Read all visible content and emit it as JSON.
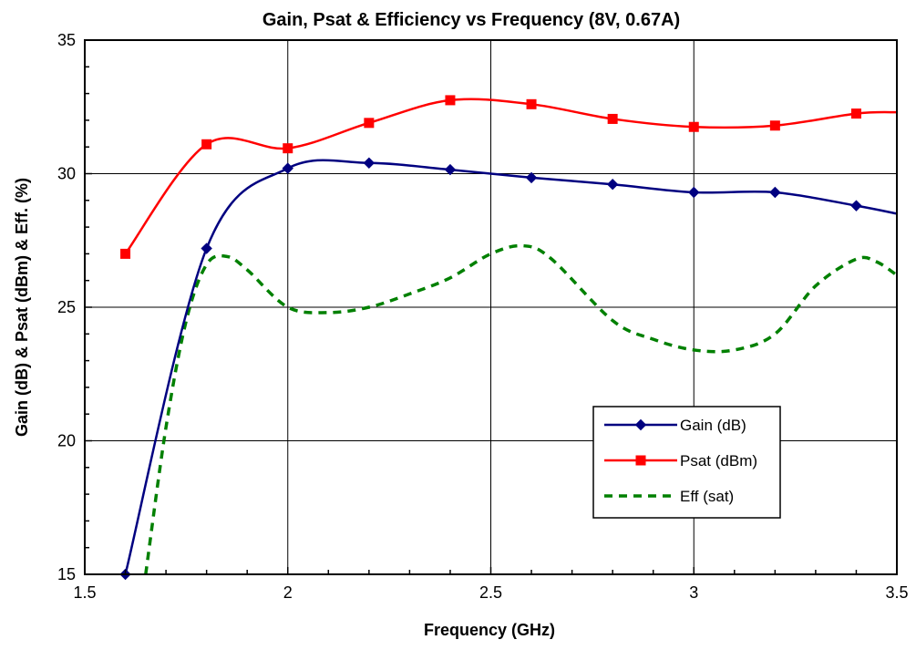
{
  "chart_data": {
    "type": "line",
    "title": "Gain, Psat & Efficiency vs Frequency (8V, 0.67A)",
    "xlabel": "Frequency (GHz)",
    "ylabel": "Gain  (dB) & Psat (dBm) & Eff. (%)",
    "xlim": [
      1.5,
      3.5
    ],
    "ylim": [
      15,
      35
    ],
    "xticks": [
      "1.5",
      "2",
      "2.5",
      "3",
      "3.5"
    ],
    "yticks": [
      "15",
      "20",
      "25",
      "30",
      "35"
    ],
    "grid": true,
    "legend_position": "lower-right",
    "series": [
      {
        "name": "Gain (dB)",
        "color": "#000080",
        "marker": "diamond",
        "dashed": false,
        "x": [
          1.6,
          1.8,
          2.0,
          2.2,
          2.4,
          2.6,
          2.8,
          3.0,
          3.2,
          3.4,
          3.5
        ],
        "values": [
          15.0,
          27.2,
          30.2,
          30.4,
          30.15,
          29.85,
          29.6,
          29.3,
          29.3,
          28.8,
          28.5
        ],
        "marker_count": 10
      },
      {
        "name": "Psat (dBm)",
        "color": "#ff0000",
        "marker": "square",
        "dashed": false,
        "x": [
          1.6,
          1.8,
          2.0,
          2.2,
          2.4,
          2.6,
          2.8,
          3.0,
          3.2,
          3.4,
          3.5
        ],
        "values": [
          27.0,
          31.1,
          30.95,
          31.9,
          32.75,
          32.6,
          32.05,
          31.75,
          31.8,
          32.25,
          32.3
        ],
        "marker_count": 10
      },
      {
        "name": "Eff (sat)",
        "color": "#008000",
        "marker": "none",
        "dashed": true,
        "x": [
          1.65,
          1.7,
          1.75,
          1.8,
          1.85,
          1.9,
          2.0,
          2.1,
          2.2,
          2.3,
          2.4,
          2.5,
          2.58,
          2.65,
          2.8,
          2.9,
          3.0,
          3.1,
          3.2,
          3.3,
          3.4,
          3.45,
          3.5
        ],
        "values": [
          15.0,
          20.5,
          24.5,
          26.6,
          26.9,
          26.4,
          25.0,
          24.8,
          25.0,
          25.5,
          26.1,
          27.0,
          27.3,
          26.8,
          24.5,
          23.8,
          23.4,
          23.4,
          24.0,
          25.8,
          26.8,
          26.7,
          26.2
        ]
      }
    ]
  }
}
